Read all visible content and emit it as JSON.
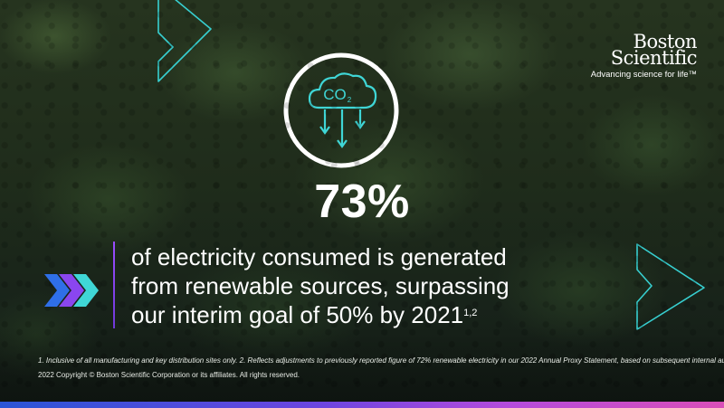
{
  "brand": {
    "line1": "Boston",
    "line2": "Scientific",
    "tagline": "Advancing science for life™"
  },
  "icon": {
    "name": "co2-cloud-icon",
    "label_main": "CO",
    "label_sub": "2"
  },
  "stat": {
    "value": "73%"
  },
  "headline": {
    "line1": "of electricity consumed is generated",
    "line2": "from renewable sources, surpassing",
    "line3": "our interim goal of 50% by 2021",
    "superscript": "1,2"
  },
  "footnote": "1. Inclusive of all manufacturing and key distribution sites only. 2. Reflects adjustments to previously reported figure of 72% renewable electricity in our 2022 Annual Proxy Statement, based on subsequent internal audit.",
  "copyright": "2022 Copyright © Boston Scientific Corporation or its affiliates. All rights reserved.",
  "colors": {
    "accent_teal": "#3fd6d6",
    "accent_purple": "#8a46ef",
    "accent_blue": "#2f6fe8"
  }
}
